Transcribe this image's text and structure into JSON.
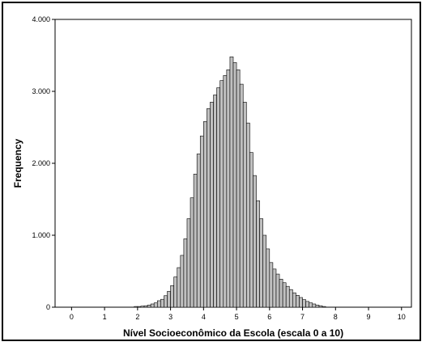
{
  "chart_data": {
    "type": "bar",
    "xlabel": "Nível Socioeconômico da Escola (escala 0 a 10)",
    "ylabel": "Frequency",
    "xlim": [
      -0.5,
      10.3
    ],
    "ylim": [
      0,
      4000
    ],
    "x_ticks": [
      0,
      1,
      2,
      3,
      4,
      5,
      6,
      7,
      8,
      9,
      10
    ],
    "x_tick_labels": [
      "0",
      "1",
      "2",
      "3",
      "4",
      "5",
      "6",
      "7",
      "8",
      "9",
      "10"
    ],
    "y_ticks": [
      0,
      1000,
      2000,
      3000,
      4000
    ],
    "y_tick_labels": [
      "0",
      "1.000",
      "2.000",
      "3.000",
      "4.000"
    ],
    "bin_width": 0.1,
    "bin_start": 1.9,
    "values": [
      10,
      10,
      15,
      20,
      30,
      45,
      60,
      90,
      110,
      160,
      220,
      300,
      420,
      550,
      720,
      950,
      1230,
      1520,
      1850,
      2130,
      2380,
      2580,
      2760,
      2850,
      2950,
      3050,
      3150,
      3220,
      3300,
      3480,
      3400,
      3300,
      3100,
      2850,
      2560,
      2150,
      1830,
      1480,
      1230,
      1000,
      810,
      620,
      530,
      460,
      390,
      340,
      290,
      245,
      200,
      165,
      135,
      105,
      80,
      60,
      45,
      30,
      20,
      10
    ],
    "bar_color": "#c0c0c0",
    "grid": false
  }
}
